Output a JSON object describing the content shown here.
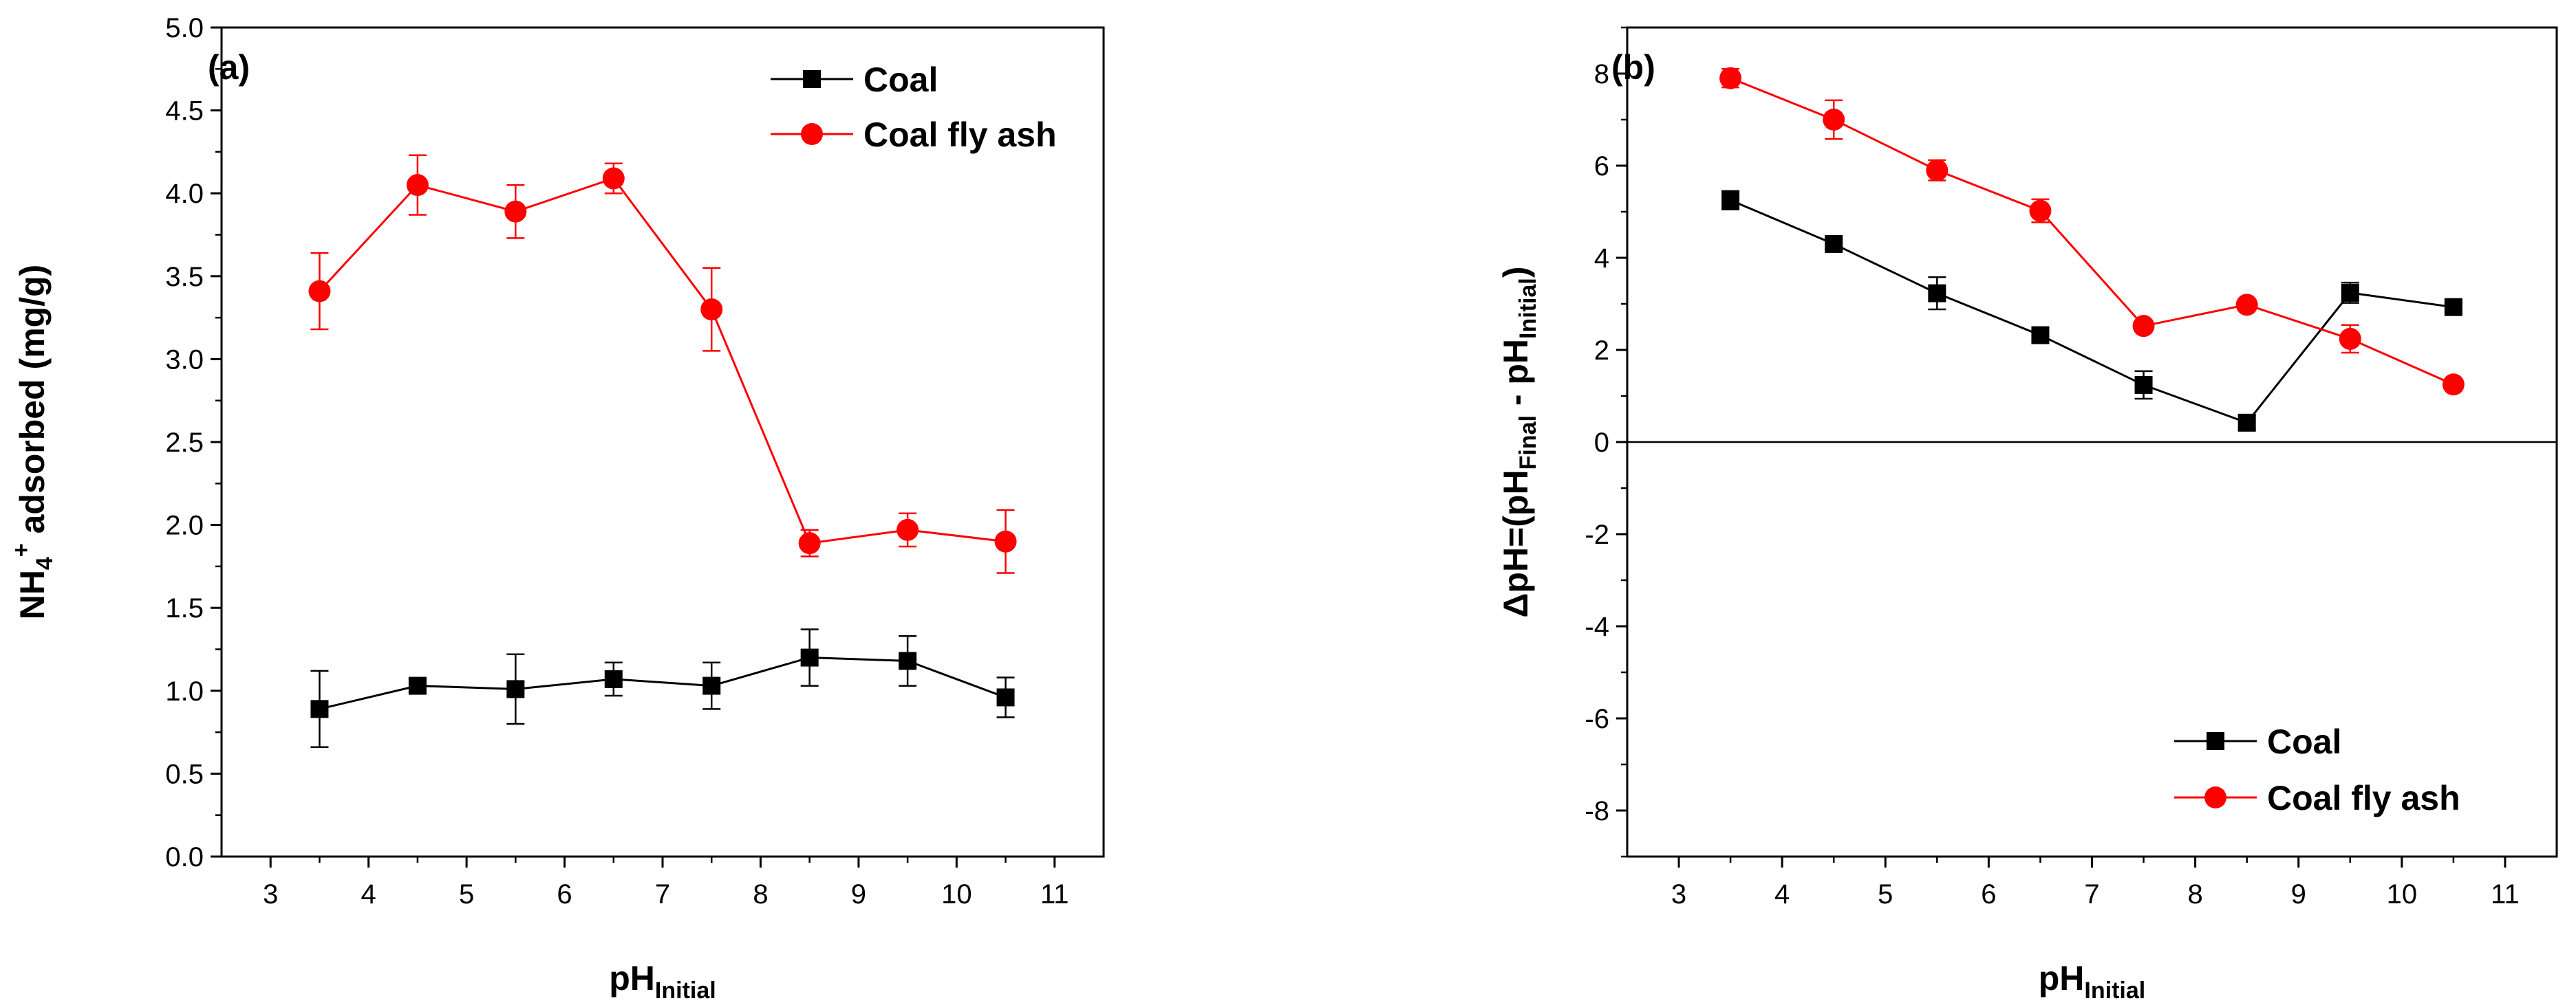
{
  "chart_data": [
    {
      "type": "line",
      "panel_label": "(a)",
      "xlabel": {
        "main": "pH",
        "sub": "Initial"
      },
      "ylabel": {
        "parts": [
          {
            "t": "NH",
            "s": "n"
          },
          {
            "t": "4",
            "s": "sub"
          },
          {
            "t": "+",
            "s": "sup"
          },
          {
            "t": " adsorbed (mg/g)",
            "s": "n"
          }
        ]
      },
      "xlim": [
        2.5,
        11.5
      ],
      "ylim": [
        0,
        5
      ],
      "xticks": [
        3,
        4,
        5,
        6,
        7,
        8,
        9,
        10,
        11
      ],
      "yticks": [
        0.0,
        0.5,
        1.0,
        1.5,
        2.0,
        2.5,
        3.0,
        3.5,
        4.0,
        4.5,
        5.0
      ],
      "ytick_labels": [
        "0.0",
        "0.5",
        "1.0",
        "1.5",
        "2.0",
        "2.5",
        "3.0",
        "3.5",
        "4.0",
        "4.5",
        "5.0"
      ],
      "zero_line": false,
      "legend_position": "top-right",
      "x": [
        3.5,
        4.5,
        5.5,
        6.5,
        7.5,
        8.5,
        9.5,
        10.5
      ],
      "series": [
        {
          "name": "Coal",
          "color": "#000000",
          "marker": "square",
          "values": [
            0.89,
            1.03,
            1.01,
            1.07,
            1.03,
            1.2,
            1.18,
            0.96
          ],
          "errors": [
            0.23,
            0.04,
            0.21,
            0.1,
            0.14,
            0.17,
            0.15,
            0.12
          ]
        },
        {
          "name": "Coal fly ash",
          "color": "#ff0000",
          "marker": "circle",
          "values": [
            3.41,
            4.05,
            3.89,
            4.09,
            3.3,
            1.89,
            1.97,
            1.9
          ],
          "errors": [
            0.23,
            0.18,
            0.16,
            0.09,
            0.25,
            0.08,
            0.1,
            0.19
          ]
        }
      ]
    },
    {
      "type": "line",
      "panel_label": "(b)",
      "xlabel": {
        "main": "pH",
        "sub": "Initial"
      },
      "ylabel": {
        "parts": [
          {
            "t": "ΔpH=(pH",
            "s": "n"
          },
          {
            "t": "Final",
            "s": "sub"
          },
          {
            "t": " - pH",
            "s": "n"
          },
          {
            "t": "Initial",
            "s": "sub"
          },
          {
            "t": ")",
            "s": "n"
          }
        ]
      },
      "xlim": [
        2.5,
        11.5
      ],
      "ylim": [
        -9,
        9
      ],
      "xticks": [
        3,
        4,
        5,
        6,
        7,
        8,
        9,
        10,
        11
      ],
      "yticks": [
        -8,
        -6,
        -4,
        -2,
        0,
        2,
        4,
        6,
        8
      ],
      "ytick_labels": [
        "-8",
        "-6",
        "-4",
        "-2",
        "0",
        "2",
        "4",
        "6",
        "8"
      ],
      "zero_line": true,
      "legend_position": "bottom-right",
      "x": [
        3.5,
        4.5,
        5.5,
        6.5,
        7.5,
        8.5,
        9.5,
        10.5
      ],
      "series": [
        {
          "name": "Coal",
          "color": "#000000",
          "marker": "square",
          "values": [
            5.25,
            4.3,
            3.23,
            2.32,
            1.24,
            0.42,
            3.24,
            2.93
          ],
          "errors": [
            0.2,
            0.1,
            0.35,
            0.1,
            0.3,
            0.15,
            0.22,
            0.1
          ]
        },
        {
          "name": "Coal fly ash",
          "color": "#ff0000",
          "marker": "circle",
          "values": [
            7.9,
            7.0,
            5.9,
            5.02,
            2.52,
            2.98,
            2.24,
            1.25
          ],
          "errors": [
            0.2,
            0.42,
            0.22,
            0.25,
            0.1,
            0.1,
            0.3,
            0.1
          ]
        }
      ]
    }
  ]
}
